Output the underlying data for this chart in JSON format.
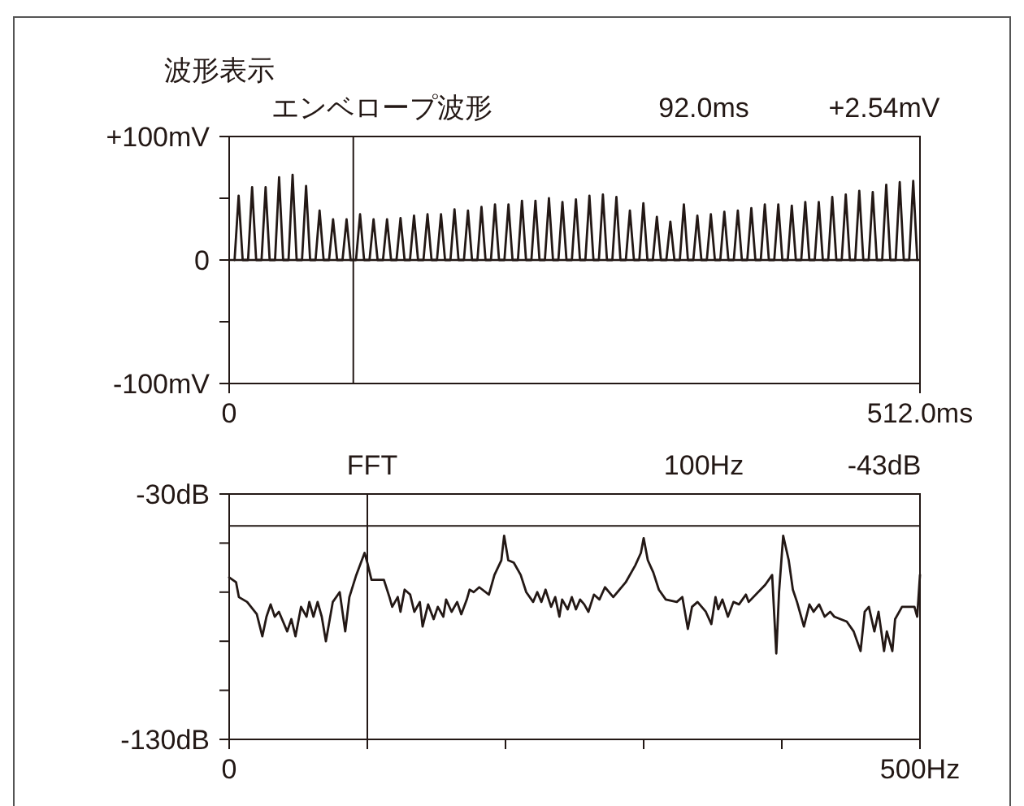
{
  "chart_data": [
    {
      "type": "line",
      "title": "波形表示",
      "subtitle": "エンベロープ波形",
      "annotations": [
        "92.0ms",
        "+2.54mV"
      ],
      "color": "#231815",
      "x": [
        4,
        7,
        10,
        14,
        17,
        20,
        24,
        27,
        30,
        34,
        37,
        40,
        44,
        47,
        50,
        54,
        57,
        60,
        64,
        67,
        70,
        74,
        77,
        80,
        84,
        87,
        90,
        94,
        97,
        100,
        104,
        107,
        110,
        114,
        117,
        120,
        124,
        127,
        130,
        134,
        137,
        140,
        144,
        147,
        150,
        154,
        157,
        160,
        164,
        167,
        170,
        174,
        177,
        180,
        184,
        187,
        190,
        194,
        197,
        200,
        204,
        207,
        210,
        214,
        217,
        220,
        224,
        227,
        230,
        234,
        237,
        240,
        244,
        247,
        250,
        254,
        257,
        260,
        264,
        267,
        270,
        274,
        277,
        280,
        284,
        287,
        290,
        294,
        297,
        300,
        304,
        307,
        310,
        314,
        317,
        320,
        324,
        327,
        330,
        334,
        337,
        340,
        344,
        347,
        350,
        354,
        357,
        360,
        364,
        367,
        370,
        374,
        377,
        380,
        384,
        387,
        390,
        394,
        397,
        400,
        404,
        407,
        410,
        414,
        417,
        420,
        424,
        427,
        430,
        434,
        437,
        440,
        444,
        447,
        450,
        454,
        457,
        460,
        464,
        467,
        470,
        474,
        477,
        480,
        484,
        487,
        490,
        494,
        497,
        500,
        504,
        507,
        510
      ],
      "values": [
        0,
        52,
        0,
        0,
        59,
        0,
        0,
        59,
        0,
        0,
        67,
        0,
        0,
        69,
        0,
        0,
        60,
        0,
        0,
        40,
        0,
        0,
        33,
        0,
        0,
        33,
        0,
        0,
        37,
        0,
        0,
        33,
        0,
        0,
        33,
        0,
        0,
        34,
        0,
        0,
        36,
        0,
        0,
        37,
        0,
        0,
        37,
        0,
        0,
        41,
        0,
        0,
        40,
        0,
        0,
        43,
        0,
        0,
        45,
        0,
        0,
        45,
        0,
        0,
        48,
        0,
        0,
        48,
        0,
        0,
        50,
        0,
        0,
        47,
        0,
        0,
        49,
        0,
        0,
        52,
        0,
        0,
        53,
        0,
        0,
        51,
        0,
        0,
        40,
        0,
        0,
        46,
        0,
        0,
        35,
        0,
        0,
        31,
        0,
        0,
        45,
        0,
        0,
        36,
        0,
        0,
        37,
        0,
        0,
        39,
        0,
        0,
        40,
        0,
        0,
        42,
        0,
        0,
        45,
        0,
        0,
        45,
        0,
        0,
        44,
        0,
        0,
        47,
        0,
        0,
        47,
        0,
        0,
        51,
        0,
        0,
        53,
        0,
        0,
        56,
        0,
        0,
        55,
        0,
        0,
        61,
        0,
        0,
        63,
        0,
        0,
        64,
        0
      ],
      "xlim": [
        0,
        512
      ],
      "ylim": [
        -100,
        100
      ],
      "xticks": [
        0,
        {
          "value": 512,
          "label": "512.0ms"
        }
      ],
      "yticks": [
        {
          "value": -100,
          "label": "-100mV"
        },
        {
          "value": -50,
          "label": null
        },
        0,
        {
          "value": 50,
          "label": null
        },
        {
          "value": 100,
          "label": "+100mV"
        }
      ],
      "ref_lines": [
        {
          "axis": "x",
          "value": 92
        }
      ]
    },
    {
      "type": "line",
      "title": "FFT",
      "annotations": [
        "100Hz",
        "-43dB"
      ],
      "color": "#231815",
      "x": [
        0,
        5,
        7,
        13,
        20,
        24,
        27,
        30,
        33,
        36,
        42,
        45,
        48,
        52,
        56,
        58,
        61,
        64,
        67,
        70,
        75,
        80,
        84,
        87,
        92,
        98,
        100,
        103,
        107,
        112,
        116,
        118,
        122,
        124,
        127,
        131,
        134,
        138,
        140,
        144,
        148,
        151,
        155,
        157,
        161,
        165,
        168,
        172,
        174,
        177,
        181,
        188,
        192,
        197,
        199,
        202,
        206,
        211,
        215,
        220,
        223,
        226,
        229,
        233,
        236,
        239,
        241,
        245,
        248,
        251,
        254,
        257,
        260,
        264,
        268,
        272,
        278,
        287,
        294,
        298,
        300,
        303,
        307,
        311,
        316,
        324,
        328,
        332,
        335,
        339,
        345,
        349,
        352,
        354,
        357,
        361,
        365,
        369,
        374,
        376,
        388,
        393,
        396,
        398,
        401,
        405,
        408,
        411,
        416,
        420,
        423,
        427,
        431,
        435,
        438,
        447,
        452,
        457,
        460,
        463,
        467,
        470,
        474,
        476,
        480,
        482,
        487,
        496,
        498,
        500
      ],
      "values": [
        -64,
        -66,
        -72,
        -74,
        -79,
        -88,
        -80,
        -75,
        -80,
        -78,
        -86,
        -81,
        -88,
        -76,
        -80,
        -74,
        -80,
        -74,
        -80,
        -90,
        -74,
        -70,
        -86,
        -72,
        -63,
        -54,
        -58,
        -65,
        -65,
        -65,
        -72,
        -76,
        -72,
        -78,
        -69,
        -71,
        -78,
        -74,
        -84,
        -75,
        -81,
        -76,
        -80,
        -73,
        -78,
        -74,
        -79,
        -73,
        -69,
        -70,
        -68,
        -71,
        -63,
        -57,
        -47,
        -57,
        -58,
        -63,
        -70,
        -74,
        -70,
        -74,
        -69,
        -76,
        -72,
        -80,
        -73,
        -77,
        -72,
        -77,
        -73,
        -75,
        -78,
        -71,
        -73,
        -68,
        -72,
        -66,
        -59,
        -54,
        -48,
        -57,
        -62,
        -69,
        -73,
        -74,
        -72,
        -85,
        -76,
        -74,
        -78,
        -83,
        -72,
        -77,
        -73,
        -80,
        -74,
        -75,
        -71,
        -74,
        -67,
        -63,
        -95,
        -70,
        -47,
        -57,
        -69,
        -74,
        -84,
        -75,
        -78,
        -75,
        -80,
        -78,
        -80,
        -82,
        -86,
        -94,
        -78,
        -76,
        -86,
        -78,
        -94,
        -86,
        -94,
        -81,
        -76,
        -76,
        -80,
        -63
      ],
      "xlim": [
        0,
        500
      ],
      "ylim": [
        -130,
        -30
      ],
      "xticks": [
        0,
        {
          "value": 100,
          "label": null
        },
        {
          "value": 200,
          "label": null
        },
        {
          "value": 300,
          "label": null
        },
        {
          "value": 400,
          "label": null
        },
        {
          "value": 500,
          "label": "500Hz"
        }
      ],
      "yticks": [
        {
          "value": -130,
          "label": "-130dB"
        },
        {
          "value": -110,
          "label": null
        },
        {
          "value": -90,
          "label": null
        },
        {
          "value": -70,
          "label": null
        },
        {
          "value": -50,
          "label": null
        },
        {
          "value": -30,
          "label": "-30dB"
        }
      ],
      "ref_lines": [
        {
          "axis": "x",
          "value": 100
        },
        {
          "axis": "y",
          "value": -43
        }
      ]
    }
  ]
}
